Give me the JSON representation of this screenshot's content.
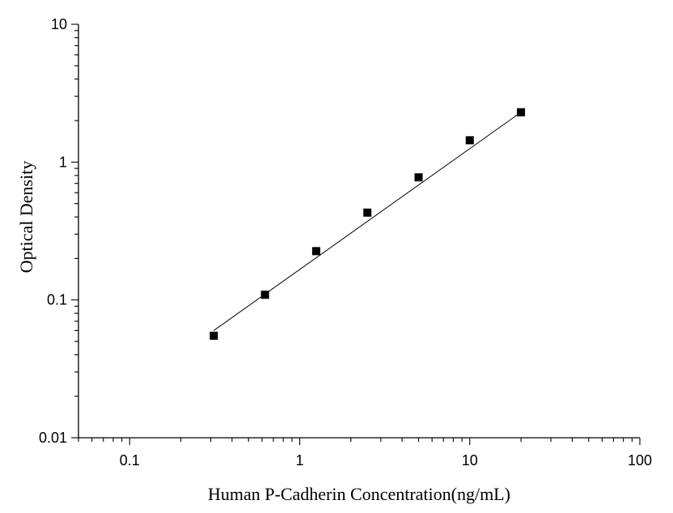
{
  "chart_data": {
    "type": "scatter",
    "xlabel": "Human P-Cadherin Concentration(ng/mL)",
    "ylabel": "Optical Density",
    "x_scale": "log",
    "y_scale": "log",
    "xlim": [
      0.05,
      100
    ],
    "ylim": [
      0.01,
      10
    ],
    "x_ticks": [
      "0.1",
      "1",
      "10",
      "100"
    ],
    "y_ticks": [
      "0.01",
      "0.1",
      "1",
      "10"
    ],
    "grid": false,
    "series": [
      {
        "x": [
          0.3125,
          0.625,
          1.25,
          2.5,
          5,
          10,
          20
        ],
        "y": [
          0.055,
          0.109,
          0.226,
          0.43,
          0.775,
          1.44,
          2.3
        ],
        "marker": "square",
        "color": "#000000"
      }
    ],
    "fit_line": {
      "x_range": [
        0.3125,
        20
      ],
      "y_range": [
        0.06,
        2.3
      ],
      "color": "#000000"
    }
  }
}
